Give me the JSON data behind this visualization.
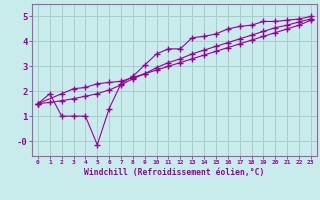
{
  "xlabel": "Windchill (Refroidissement éolien,°C)",
  "background_color": "#c8ecec",
  "line_color": "#990099",
  "grid_color": "#aacccc",
  "spine_color": "#996699",
  "xlim": [
    -0.5,
    23.5
  ],
  "ylim": [
    -0.6,
    5.5
  ],
  "yticks": [
    0,
    1,
    2,
    3,
    4,
    5
  ],
  "ytick_labels": [
    "-0",
    "1",
    "2",
    "3",
    "4",
    "5"
  ],
  "xticks": [
    0,
    1,
    2,
    3,
    4,
    5,
    6,
    7,
    8,
    9,
    10,
    11,
    12,
    13,
    14,
    15,
    16,
    17,
    18,
    19,
    20,
    21,
    22,
    23
  ],
  "line1_x": [
    0,
    1,
    2,
    3,
    4,
    5,
    6,
    7,
    8,
    9,
    10,
    11,
    12,
    13,
    14,
    15,
    16,
    17,
    18,
    19,
    20,
    21,
    22,
    23
  ],
  "line1_y": [
    1.5,
    1.9,
    1.0,
    1.0,
    1.0,
    -0.15,
    1.3,
    2.3,
    2.6,
    3.05,
    3.5,
    3.7,
    3.7,
    4.15,
    4.2,
    4.3,
    4.5,
    4.6,
    4.65,
    4.8,
    4.8,
    4.85,
    4.9,
    5.0
  ],
  "line2_x": [
    0,
    2,
    3,
    4,
    5,
    6,
    7,
    8,
    9,
    10,
    11,
    12,
    13,
    14,
    15,
    16,
    17,
    18,
    19,
    20,
    21,
    22,
    23
  ],
  "line2_y": [
    1.5,
    1.9,
    2.1,
    2.15,
    2.3,
    2.35,
    2.4,
    2.55,
    2.7,
    2.85,
    3.0,
    3.15,
    3.3,
    3.45,
    3.6,
    3.75,
    3.9,
    4.05,
    4.2,
    4.35,
    4.5,
    4.65,
    4.85
  ],
  "line3_x": [
    0,
    1,
    2,
    3,
    4,
    5,
    6,
    7,
    8,
    9,
    10,
    11,
    12,
    13,
    14,
    15,
    16,
    17,
    18,
    19,
    20,
    21,
    22,
    23
  ],
  "line3_y": [
    1.5,
    1.55,
    1.62,
    1.7,
    1.8,
    1.9,
    2.05,
    2.25,
    2.5,
    2.7,
    2.95,
    3.15,
    3.3,
    3.5,
    3.65,
    3.8,
    3.95,
    4.1,
    4.25,
    4.4,
    4.55,
    4.65,
    4.78,
    4.9
  ]
}
